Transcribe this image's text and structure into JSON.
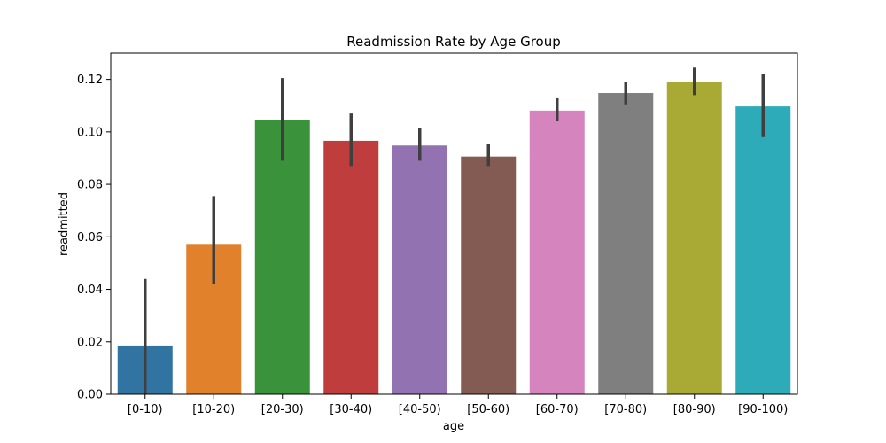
{
  "chart_data": {
    "type": "bar",
    "title": "Readmission Rate by Age Group",
    "xlabel": "age",
    "ylabel": "readmitted",
    "ylim": [
      0,
      0.13
    ],
    "yticks": [
      0.0,
      0.02,
      0.04,
      0.06,
      0.08,
      0.1,
      0.12
    ],
    "ytick_labels": [
      "0.00",
      "0.02",
      "0.04",
      "0.06",
      "0.08",
      "0.10",
      "0.12"
    ],
    "grid": false,
    "categories": [
      "[0-10)",
      "[10-20)",
      "[20-30)",
      "[30-40)",
      "[40-50)",
      "[50-60)",
      "[60-70)",
      "[70-80)",
      "[80-90)",
      "[90-100)"
    ],
    "values": [
      0.0186,
      0.0573,
      0.1045,
      0.0966,
      0.0948,
      0.0906,
      0.1081,
      0.1148,
      0.1191,
      0.1097
    ],
    "error_low": [
      0.0,
      0.042,
      0.089,
      0.087,
      0.089,
      0.087,
      0.104,
      0.1105,
      0.114,
      0.098
    ],
    "error_high": [
      0.044,
      0.0755,
      0.1205,
      0.107,
      0.1015,
      0.0955,
      0.1128,
      0.119,
      0.1245,
      0.122
    ],
    "colors": [
      "#3274a1",
      "#e1812c",
      "#3a923a",
      "#c03d3e",
      "#9372b2",
      "#845b53",
      "#d684bd",
      "#7f7f7f",
      "#a9aa35",
      "#2eabb8"
    ],
    "error_color": "#3f3f3f"
  }
}
